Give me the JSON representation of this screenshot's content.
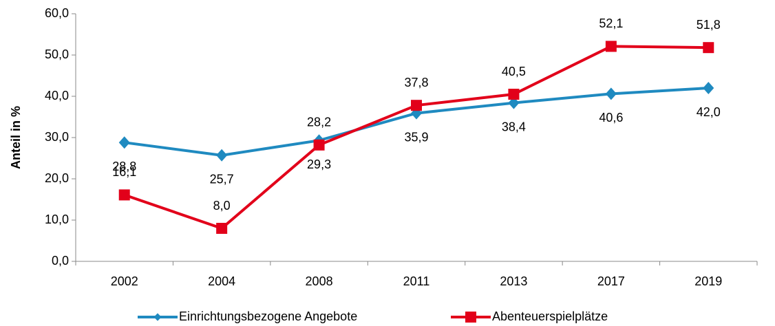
{
  "chart_data": {
    "type": "line",
    "y_label": "Anteil in %",
    "categories": [
      "2002",
      "2004",
      "2008",
      "2011",
      "2013",
      "2017",
      "2019"
    ],
    "series": [
      {
        "name": "Einrichtungsbezogene Angebote",
        "color": "#1f8ac0",
        "marker": "diamond",
        "values": [
          28.8,
          25.7,
          29.3,
          35.9,
          38.4,
          40.6,
          42.0
        ],
        "value_labels": [
          "28,8",
          "25,7",
          "29,3",
          "35,9",
          "38,4",
          "40,6",
          "42,0"
        ]
      },
      {
        "name": "Abenteuerspielplätze",
        "color": "#e2001a",
        "marker": "square",
        "values": [
          16.1,
          8.0,
          28.2,
          37.8,
          40.5,
          52.1,
          51.8
        ],
        "value_labels": [
          "16,1",
          "8,0",
          "28,2",
          "37,8",
          "40,5",
          "52,1",
          "51,8"
        ]
      }
    ],
    "ylim": [
      0,
      60
    ],
    "yticks": [
      {
        "value": 0,
        "label": "0,0"
      },
      {
        "value": 10,
        "label": "10,0"
      },
      {
        "value": 20,
        "label": "20,0"
      },
      {
        "value": 30,
        "label": "30,0"
      },
      {
        "value": 40,
        "label": "40,0"
      },
      {
        "value": 50,
        "label": "50,0"
      },
      {
        "value": 60,
        "label": "60,0"
      }
    ],
    "grid": false,
    "legend": "bottom"
  }
}
